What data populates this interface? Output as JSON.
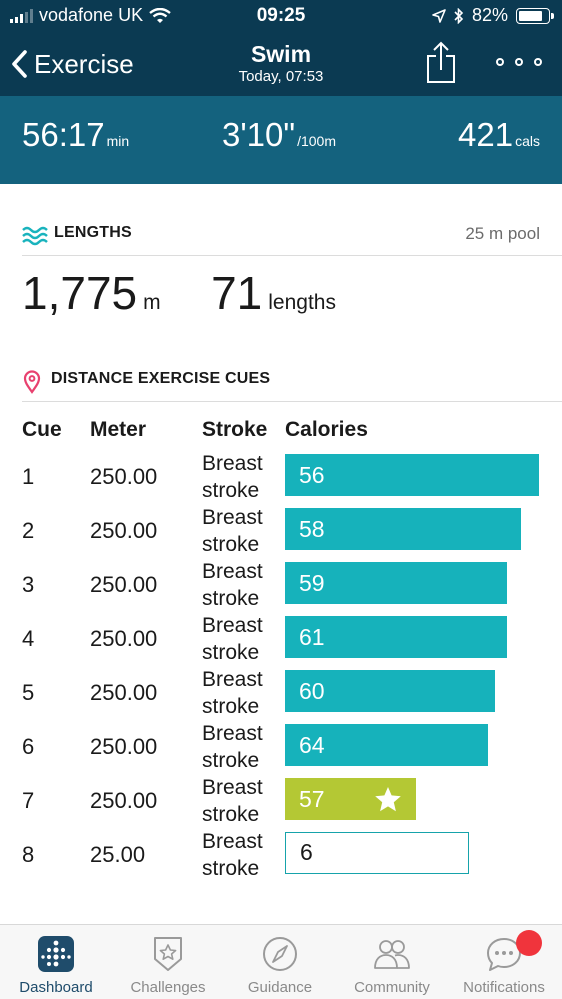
{
  "status_bar": {
    "carrier": "vodafone UK",
    "time": "09:25",
    "battery": "82%",
    "battery_level": 0.82
  },
  "nav": {
    "back_label": "Exercise",
    "title": "Swim",
    "subtitle": "Today, 07:53"
  },
  "stats": {
    "duration": {
      "value": "56:17",
      "unit": "min"
    },
    "pace": {
      "value": "3'10\"",
      "unit": "/100m"
    },
    "calories": {
      "value": "421",
      "unit": "cals"
    }
  },
  "lengths": {
    "heading": "LENGTHS",
    "pool": "25 m pool",
    "distance": {
      "value": "1,775",
      "unit": "m"
    },
    "count": {
      "value": "71",
      "unit": "lengths"
    }
  },
  "cues": {
    "heading": "DISTANCE EXERCISE CUES",
    "columns": {
      "cue": "Cue",
      "meter": "Meter",
      "stroke": "Stroke",
      "calories": "Calories"
    },
    "rows": [
      {
        "cue": "1",
        "meter": "250.00",
        "stroke": "Breast stroke",
        "calories": "56",
        "fill": 1.0,
        "style": "teal"
      },
      {
        "cue": "2",
        "meter": "250.00",
        "stroke": "Breast stroke",
        "calories": "58",
        "fill": 0.93,
        "style": "teal"
      },
      {
        "cue": "3",
        "meter": "250.00",
        "stroke": "Breast stroke",
        "calories": "59",
        "fill": 0.874,
        "style": "teal"
      },
      {
        "cue": "4",
        "meter": "250.00",
        "stroke": "Breast stroke",
        "calories": "61",
        "fill": 0.874,
        "style": "teal"
      },
      {
        "cue": "5",
        "meter": "250.00",
        "stroke": "Breast stroke",
        "calories": "60",
        "fill": 0.827,
        "style": "teal"
      },
      {
        "cue": "6",
        "meter": "250.00",
        "stroke": "Breast stroke",
        "calories": "64",
        "fill": 0.799,
        "style": "teal"
      },
      {
        "cue": "7",
        "meter": "250.00",
        "stroke": "Breast stroke",
        "calories": "57",
        "fill": 0.516,
        "style": "green",
        "best": true
      },
      {
        "cue": "8",
        "meter": "25.00",
        "stroke": "Breast stroke",
        "calories": "6",
        "fill": 0.724,
        "style": "outline"
      }
    ]
  },
  "tabs": [
    {
      "label": "Dashboard",
      "icon": "dashboard-icon",
      "active": true
    },
    {
      "label": "Challenges",
      "icon": "challenges-icon",
      "active": false
    },
    {
      "label": "Guidance",
      "icon": "compass-icon",
      "active": false
    },
    {
      "label": "Community",
      "icon": "community-icon",
      "active": false
    },
    {
      "label": "Notifications",
      "icon": "notifications-icon",
      "active": false
    }
  ],
  "colors": {
    "navbar": "#0b3a52",
    "stats_band": "#14627e",
    "bar_teal": "#16b2bb",
    "bar_best": "#b4c834",
    "badge": "#f0343c"
  }
}
